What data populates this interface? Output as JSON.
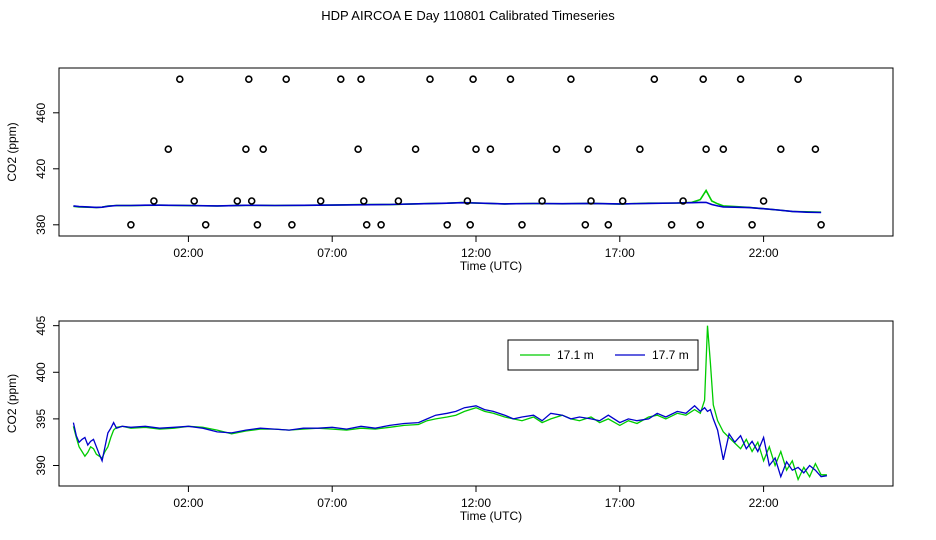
{
  "page": {
    "title": "HDP AIRCOA E  Day 110801  Calibrated Timeseries"
  },
  "chart_data": [
    {
      "type": "scatter+line",
      "xlabel": "Time (UTC)",
      "ylabel": "CO2 (ppm)",
      "xlim": [
        -2.5,
        26.5
      ],
      "ylim": [
        372,
        492
      ],
      "xticks": [
        {
          "value": 2,
          "label": "02:00"
        },
        {
          "value": 7,
          "label": "07:00"
        },
        {
          "value": 12,
          "label": "12:00"
        },
        {
          "value": 17,
          "label": "17:00"
        },
        {
          "value": 22,
          "label": "22:00"
        }
      ],
      "yticks": [
        {
          "value": 380,
          "label": "380"
        },
        {
          "value": 420,
          "label": "420"
        },
        {
          "value": 460,
          "label": "460"
        }
      ],
      "calibration_points": {
        "marker": "open-circle",
        "x": [
          0.0,
          1.7,
          2.6,
          3.7,
          4.4,
          5.4,
          0.8,
          1.3,
          2.2,
          4.0,
          4.1,
          4.2,
          4.6,
          5.6,
          6.6,
          7.3,
          7.9,
          8.0,
          8.1,
          8.2,
          8.7,
          9.3,
          9.9,
          10.4,
          11.0,
          11.7,
          11.8,
          11.9,
          12.0,
          12.5,
          13.2,
          13.6,
          14.3,
          14.8,
          15.3,
          15.8,
          15.9,
          16.0,
          16.6,
          17.1,
          17.7,
          18.2,
          18.8,
          19.2,
          19.8,
          19.9,
          20.0,
          20.6,
          21.2,
          21.6,
          22.0,
          22.6,
          23.2,
          23.8,
          24.0
        ],
        "y": [
          380,
          484,
          380,
          397,
          380,
          484,
          397,
          434,
          397,
          434,
          484,
          397,
          434,
          380,
          397,
          484,
          434,
          484,
          397,
          380,
          380,
          397,
          434,
          484,
          380,
          397,
          380,
          484,
          434,
          434,
          484,
          380,
          397,
          434,
          484,
          380,
          434,
          397,
          380,
          397,
          434,
          484,
          380,
          397,
          380,
          484,
          434,
          434,
          484,
          380,
          397,
          434,
          484,
          434,
          380
        ]
      },
      "series": [
        {
          "name": "17.1 m",
          "color": "#00cc00",
          "x": [
            -2.0,
            -1.8,
            -1.5,
            -1.2,
            -1.0,
            -0.8,
            -0.5,
            0.0,
            0.5,
            1.0,
            2.0,
            3.0,
            4.0,
            5.0,
            6.0,
            7.0,
            8.0,
            9.0,
            10.0,
            11.0,
            11.5,
            12.0,
            12.5,
            13.0,
            14.0,
            15.0,
            16.0,
            17.0,
            18.0,
            19.0,
            19.5,
            19.8,
            20.0,
            20.2,
            20.4,
            20.6,
            21.0,
            21.5,
            22.0,
            22.5,
            23.0,
            23.5,
            24.0
          ],
          "y": [
            393.2,
            392.8,
            392.6,
            392.4,
            392.6,
            393.4,
            393.8,
            393.7,
            393.9,
            394.0,
            393.7,
            393.4,
            393.9,
            393.8,
            393.9,
            394.1,
            394.4,
            394.4,
            395.0,
            395.4,
            395.9,
            395.5,
            395.2,
            394.9,
            395.2,
            395.0,
            395.3,
            394.8,
            395.4,
            395.6,
            396.0,
            398.0,
            404.5,
            397.0,
            395.0,
            393.5,
            393.0,
            392.4,
            391.5,
            390.6,
            389.5,
            389.3,
            389.0
          ]
        },
        {
          "name": "17.7 m",
          "color": "#0000cc",
          "x": [
            -2.0,
            -1.8,
            -1.5,
            -1.2,
            -1.0,
            -0.8,
            -0.5,
            0.0,
            0.5,
            1.0,
            2.0,
            3.0,
            4.0,
            5.0,
            6.0,
            7.0,
            8.0,
            9.0,
            10.0,
            11.0,
            11.5,
            12.0,
            12.5,
            13.0,
            14.0,
            15.0,
            16.0,
            17.0,
            18.0,
            19.0,
            19.5,
            19.8,
            20.0,
            20.2,
            20.4,
            20.6,
            21.0,
            21.5,
            22.0,
            22.5,
            23.0,
            23.5,
            24.0
          ],
          "y": [
            393.5,
            393.0,
            392.8,
            392.4,
            392.6,
            393.2,
            393.8,
            393.8,
            394.0,
            394.0,
            393.8,
            393.5,
            393.9,
            393.8,
            393.9,
            394.1,
            394.3,
            394.5,
            395.0,
            395.4,
            395.8,
            395.6,
            395.3,
            394.9,
            395.2,
            395.1,
            395.3,
            394.9,
            395.3,
            395.6,
            395.8,
            396.0,
            396.0,
            394.5,
            393.5,
            392.8,
            392.6,
            392.3,
            391.5,
            390.6,
            389.6,
            389.0,
            388.8
          ]
        }
      ]
    },
    {
      "type": "line",
      "xlabel": "Time (UTC)",
      "ylabel": "CO2 (ppm)",
      "xlim": [
        -2.5,
        26.5
      ],
      "ylim": [
        387.8,
        405.5
      ],
      "xticks": [
        {
          "value": 2,
          "label": "02:00"
        },
        {
          "value": 7,
          "label": "07:00"
        },
        {
          "value": 12,
          "label": "12:00"
        },
        {
          "value": 17,
          "label": "17:00"
        },
        {
          "value": 22,
          "label": "22:00"
        }
      ],
      "yticks": [
        {
          "value": 390,
          "label": "390"
        },
        {
          "value": 395,
          "label": "395"
        },
        {
          "value": 400,
          "label": "400"
        },
        {
          "value": 405,
          "label": "405"
        }
      ],
      "legend": {
        "position": "top-center-right",
        "entries": [
          "17.1 m",
          "17.7 m"
        ]
      },
      "series": [
        {
          "name": "17.1 m",
          "color": "#00cc00",
          "x": [
            -2.0,
            -1.9,
            -1.8,
            -1.7,
            -1.6,
            -1.5,
            -1.4,
            -1.3,
            -1.2,
            -1.1,
            -1.0,
            -0.9,
            -0.8,
            -0.7,
            -0.6,
            -0.5,
            -0.3,
            0.0,
            0.5,
            1.0,
            1.5,
            2.0,
            2.5,
            3.0,
            3.5,
            4.0,
            4.5,
            5.0,
            5.5,
            6.0,
            6.5,
            7.0,
            7.5,
            8.0,
            8.5,
            9.0,
            9.5,
            10.0,
            10.3,
            10.6,
            11.0,
            11.3,
            11.6,
            12.0,
            12.3,
            12.6,
            13.0,
            13.3,
            13.6,
            14.0,
            14.3,
            14.6,
            15.0,
            15.3,
            15.6,
            16.0,
            16.3,
            16.6,
            17.0,
            17.3,
            17.6,
            18.0,
            18.3,
            18.6,
            19.0,
            19.3,
            19.6,
            19.8,
            19.95,
            20.05,
            20.15,
            20.25,
            20.4,
            20.6,
            20.8,
            21.0,
            21.2,
            21.4,
            21.6,
            21.8,
            22.0,
            22.2,
            22.4,
            22.6,
            22.8,
            23.0,
            23.2,
            23.4,
            23.6,
            23.8,
            24.0,
            24.2
          ],
          "y": [
            394.2,
            393.0,
            392.0,
            391.5,
            391.0,
            391.4,
            392.0,
            391.8,
            391.2,
            391.0,
            390.8,
            391.5,
            392.0,
            393.0,
            393.8,
            394.1,
            394.2,
            394.0,
            394.1,
            393.9,
            394.0,
            394.2,
            394.1,
            393.8,
            393.4,
            393.7,
            393.9,
            393.9,
            393.8,
            393.9,
            394.0,
            393.9,
            393.8,
            394.0,
            393.9,
            394.1,
            394.3,
            394.4,
            394.8,
            395.0,
            395.2,
            395.4,
            395.8,
            396.2,
            395.8,
            395.6,
            395.2,
            395.0,
            394.8,
            395.2,
            394.6,
            395.0,
            395.4,
            395.0,
            394.8,
            395.2,
            394.6,
            395.0,
            394.3,
            394.8,
            394.5,
            395.2,
            395.4,
            395.0,
            395.6,
            395.4,
            396.0,
            395.6,
            397.0,
            405.0,
            401.0,
            396.5,
            394.8,
            393.6,
            393.0,
            392.4,
            391.8,
            392.8,
            391.5,
            392.5,
            390.5,
            392.0,
            390.0,
            391.5,
            389.5,
            390.5,
            388.5,
            389.8,
            388.8,
            390.2,
            389.0,
            389.0
          ]
        },
        {
          "name": "17.7 m",
          "color": "#0000cc",
          "x": [
            -2.0,
            -1.9,
            -1.8,
            -1.7,
            -1.6,
            -1.5,
            -1.4,
            -1.3,
            -1.2,
            -1.1,
            -1.0,
            -0.9,
            -0.8,
            -0.7,
            -0.6,
            -0.5,
            -0.3,
            0.0,
            0.5,
            1.0,
            1.5,
            2.0,
            2.5,
            3.0,
            3.5,
            4.0,
            4.5,
            5.0,
            5.5,
            6.0,
            6.5,
            7.0,
            7.5,
            8.0,
            8.5,
            9.0,
            9.5,
            10.0,
            10.3,
            10.6,
            11.0,
            11.3,
            11.6,
            12.0,
            12.3,
            12.6,
            13.0,
            13.3,
            13.6,
            14.0,
            14.3,
            14.6,
            15.0,
            15.3,
            15.6,
            16.0,
            16.3,
            16.6,
            17.0,
            17.3,
            17.6,
            18.0,
            18.3,
            18.6,
            19.0,
            19.3,
            19.6,
            19.8,
            19.95,
            20.05,
            20.15,
            20.25,
            20.4,
            20.6,
            20.8,
            21.0,
            21.2,
            21.4,
            21.6,
            21.8,
            22.0,
            22.2,
            22.4,
            22.6,
            22.8,
            23.0,
            23.2,
            23.4,
            23.6,
            23.8,
            24.0,
            24.2
          ],
          "y": [
            394.6,
            393.2,
            392.5,
            392.8,
            393.0,
            392.2,
            392.6,
            392.8,
            392.0,
            391.2,
            390.5,
            392.0,
            393.5,
            394.0,
            394.6,
            394.0,
            394.2,
            394.1,
            394.2,
            394.0,
            394.1,
            394.2,
            394.0,
            393.6,
            393.5,
            393.8,
            394.0,
            393.9,
            393.8,
            394.0,
            394.0,
            394.1,
            393.9,
            394.2,
            394.0,
            394.3,
            394.5,
            394.6,
            395.0,
            395.4,
            395.6,
            395.8,
            396.2,
            396.4,
            396.0,
            395.8,
            395.4,
            395.0,
            395.2,
            395.4,
            394.8,
            395.6,
            395.4,
            395.0,
            395.2,
            395.0,
            394.8,
            395.4,
            394.6,
            395.0,
            394.8,
            395.0,
            395.6,
            395.2,
            395.8,
            395.6,
            396.4,
            395.8,
            396.2,
            395.8,
            396.0,
            395.0,
            393.8,
            390.6,
            393.4,
            392.5,
            393.2,
            391.8,
            392.6,
            391.5,
            393.0,
            390.0,
            390.8,
            388.8,
            390.4,
            389.5,
            389.8,
            389.2,
            390.0,
            389.5,
            388.8,
            388.9
          ]
        }
      ]
    }
  ]
}
